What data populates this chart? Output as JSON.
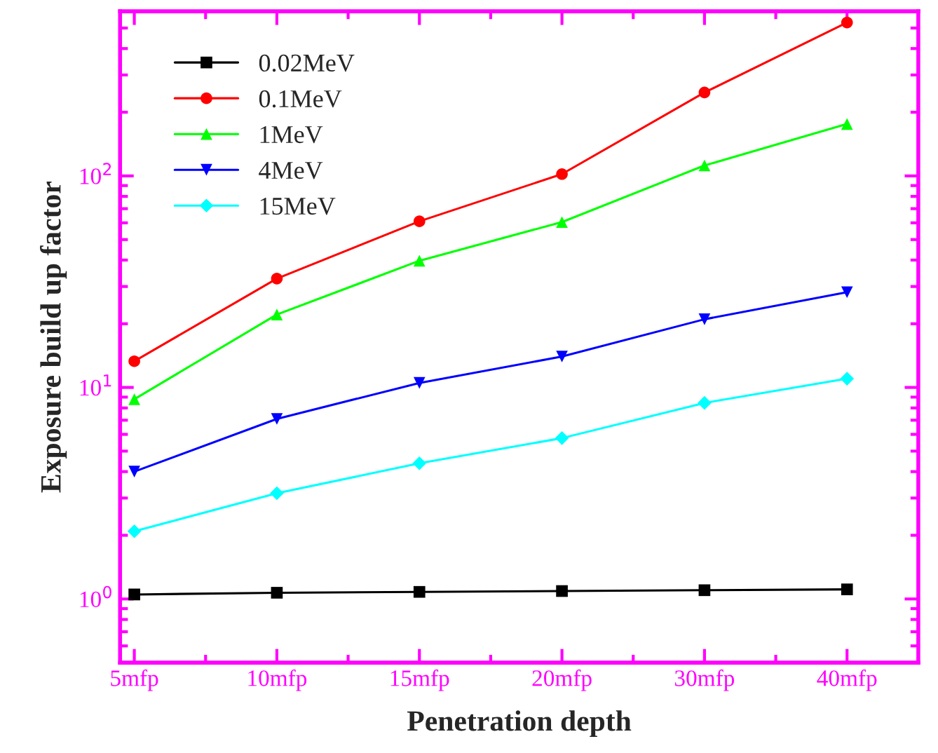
{
  "chart_data": {
    "type": "line",
    "xlabel": "Penetration depth",
    "ylabel": "Exposure build up factor",
    "categories": [
      "5mfp",
      "10mfp",
      "15mfp",
      "20mfp",
      "30mfp",
      "40mfp"
    ],
    "log": "y",
    "ylim": [
      0.5,
      600
    ],
    "yticks": [
      {
        "value": 1,
        "label": "10$^{0}$"
      },
      {
        "value": 10,
        "label": "10$^{1}$"
      },
      {
        "value": 100,
        "label": "10$^{2}$"
      }
    ],
    "grid": false,
    "legend": "top left",
    "line_style": "solid",
    "series": [
      {
        "name": "0.02MeV",
        "color": "#000000",
        "marker": "square",
        "values": [
          1.05,
          1.07,
          1.08,
          1.09,
          1.1,
          1.11
        ]
      },
      {
        "name": "0.1MeV",
        "color": "#ff0000",
        "marker": "circle",
        "values": [
          13.3,
          32.7,
          61,
          102,
          248,
          531
        ]
      },
      {
        "name": "1MeV",
        "color": "#00ff00",
        "marker": "triangle",
        "values": [
          8.8,
          22.1,
          39.7,
          60.5,
          112,
          176
        ]
      },
      {
        "name": "4MeV",
        "color": "#0000ff",
        "marker": "triangle_down",
        "values": [
          4.0,
          7.1,
          10.5,
          14.0,
          21,
          28.2
        ]
      },
      {
        "name": "15MeV",
        "color": "#00ffff",
        "marker": "diamond",
        "values": [
          2.09,
          3.16,
          4.38,
          5.76,
          8.45,
          11.0
        ]
      }
    ]
  }
}
